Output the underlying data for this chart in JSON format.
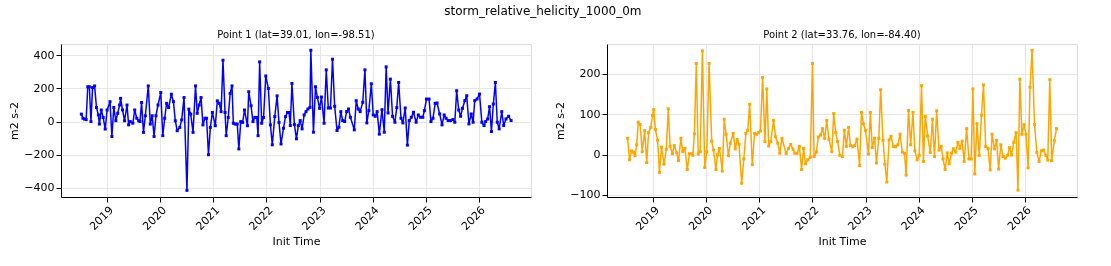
{
  "chart_data": [
    {
      "type": "line",
      "title": "storm_relative_helicity_1000_0m",
      "subtitle": "Point 1 (lat=39.01, lon=-98.51)",
      "xlabel": "Init Time",
      "ylabel": "m2 s-2",
      "xlim": [
        "2018-02-18",
        "2026-12-25"
      ],
      "xticks": [
        "2019",
        "2020",
        "2021",
        "2022",
        "2023",
        "2024",
        "2025",
        "2026"
      ],
      "ylim": [
        -455,
        468
      ],
      "yticks": [
        -400,
        -200,
        0,
        200,
        400
      ],
      "grid": true,
      "marker": "square",
      "x": [
        "2018-07-08",
        "2018-07-19",
        "2018-07-30",
        "2018-08-10",
        "2018-08-21",
        "2018-09-01",
        "2018-09-12",
        "2018-09-23",
        "2018-10-07",
        "2018-10-20",
        "2018-11-02",
        "2018-11-09",
        "2018-11-22",
        "2018-12-05",
        "2018-12-19",
        "2019-01-01",
        "2019-01-21",
        "2019-02-03",
        "2019-02-16",
        "2019-03-02",
        "2019-03-15",
        "2019-03-28",
        "2019-04-04",
        "2019-04-17",
        "2019-05-01",
        "2019-05-18",
        "2019-05-29",
        "2019-06-09",
        "2019-06-27",
        "2019-07-10",
        "2019-07-24",
        "2019-08-06",
        "2019-08-15",
        "2019-08-26",
        "2019-09-08",
        "2019-09-21",
        "2019-10-11",
        "2019-10-25",
        "2019-11-07",
        "2019-11-20",
        "2019-12-03",
        "2019-12-17",
        "2020-01-05",
        "2020-01-19",
        "2020-02-01",
        "2020-02-14",
        "2020-02-28",
        "2020-03-18",
        "2020-04-01",
        "2020-04-14",
        "2020-04-27",
        "2020-05-15",
        "2020-05-28",
        "2020-06-13",
        "2020-07-03",
        "2020-07-16",
        "2020-07-29",
        "2020-08-14",
        "2020-08-31",
        "2020-09-12",
        "2020-09-25",
        "2020-10-08",
        "2020-10-21",
        "2020-11-04",
        "2020-11-15",
        "2020-11-28",
        "2020-12-11",
        "2020-12-25",
        "2021-01-14",
        "2021-01-28",
        "2021-02-10",
        "2021-02-23",
        "2021-03-08",
        "2021-03-22",
        "2021-03-30",
        "2021-04-13",
        "2021-04-26",
        "2021-05-09",
        "2021-05-18",
        "2021-05-31",
        "2021-06-14",
        "2021-06-25",
        "2021-07-08",
        "2021-07-21",
        "2021-08-03",
        "2021-08-23",
        "2021-09-01",
        "2021-09-17",
        "2021-09-30",
        "2021-10-13",
        "2021-10-26",
        "2021-11-04",
        "2021-11-15",
        "2021-11-29",
        "2021-12-12",
        "2021-12-27",
        "2022-01-14",
        "2022-01-28",
        "2022-02-10",
        "2022-02-27",
        "2022-03-15",
        "2022-03-28",
        "2022-04-11",
        "2022-04-28",
        "2022-05-12",
        "2022-05-25",
        "2022-06-05",
        "2022-06-14",
        "2022-06-25",
        "2022-07-12",
        "2022-07-26",
        "2022-08-08",
        "2022-08-21",
        "2022-09-03",
        "2022-09-17",
        "2022-09-30",
        "2022-10-13",
        "2022-10-27",
        "2022-11-02",
        "2022-11-20",
        "2022-12-04",
        "2022-12-17",
        "2023-01-01",
        "2023-01-14",
        "2023-02-01",
        "2023-02-16",
        "2023-03-02",
        "2023-03-17",
        "2023-03-31",
        "2023-04-15",
        "2023-05-01",
        "2023-05-14",
        "2023-05-27",
        "2023-06-09",
        "2023-06-23",
        "2023-07-06",
        "2023-07-19",
        "2023-08-01",
        "2023-08-28",
        "2023-09-10",
        "2023-09-24",
        "2023-10-07",
        "2023-10-25",
        "2023-11-09",
        "2023-11-22",
        "2023-12-06",
        "2023-12-23",
        "2024-01-05",
        "2024-01-19",
        "2024-02-01",
        "2024-02-16",
        "2024-03-05",
        "2024-03-21",
        "2024-04-03",
        "2024-04-16",
        "2024-05-02",
        "2024-05-17",
        "2024-06-02",
        "2024-06-15",
        "2024-06-28",
        "2024-07-14",
        "2024-07-27",
        "2024-08-12",
        "2024-08-27",
        "2024-09-09",
        "2024-09-23",
        "2024-10-08",
        "2024-10-26",
        "2024-11-10",
        "2024-11-26",
        "2024-12-11",
        "2024-12-22",
        "2025-01-05",
        "2025-01-23",
        "2025-02-05",
        "2025-02-19",
        "2025-03-06",
        "2025-03-19",
        "2025-04-06",
        "2025-04-22",
        "2025-05-07",
        "2025-05-20",
        "2025-06-03",
        "2025-06-20",
        "2025-07-06",
        "2025-07-19",
        "2025-08-01",
        "2025-08-15",
        "2025-08-28",
        "2025-09-10",
        "2025-09-26",
        "2025-10-09",
        "2025-10-24",
        "2025-11-09",
        "2025-11-22",
        "2025-12-03",
        "2025-12-19",
        "2026-01-05",
        "2026-01-21",
        "2026-02-05",
        "2026-02-16",
        "2026-03-02",
        "2026-03-15",
        "2026-03-28",
        "2026-04-10",
        "2026-04-24",
        "2026-05-07",
        "2026-05-20",
        "2026-06-07",
        "2026-06-20",
        "2026-07-06",
        "2026-07-24",
        "2026-08-10"
      ],
      "series": [
        {
          "color": "#0000ff",
          "values": [
            45,
            20,
            15,
            12,
            210,
            210,
            0,
            205,
            215,
            85,
            40,
            -15,
            70,
            25,
            -45,
            70,
            120,
            -90,
            85,
            5,
            50,
            100,
            140,
            70,
            5,
            100,
            -20,
            0,
            -10,
            70,
            20,
            5,
            0,
            115,
            -65,
            35,
            215,
            -15,
            35,
            -90,
            35,
            100,
            175,
            -85,
            20,
            110,
            85,
            165,
            120,
            5,
            -55,
            -35,
            10,
            145,
            -415,
            75,
            45,
            -65,
            215,
            50,
            100,
            145,
            -20,
            20,
            20,
            -200,
            -35,
            55,
            -25,
            125,
            110,
            60,
            370,
            55,
            -85,
            25,
            170,
            215,
            -10,
            -15,
            -15,
            -165,
            0,
            -5,
            70,
            -25,
            180,
            95,
            0,
            25,
            25,
            -85,
            360,
            -10,
            25,
            275,
            200,
            -20,
            -140,
            30,
            155,
            -5,
            -135,
            -40,
            30,
            55,
            55,
            -24,
            230,
            -18,
            -104,
            -24,
            6,
            -44,
            40,
            60,
            76,
            86,
            430,
            -64,
            210,
            146,
            80,
            148,
            -10,
            312,
            82,
            82,
            376,
            92,
            -54,
            -34,
            60,
            6,
            0,
            60,
            76,
            26,
            -50,
            126,
            76,
            60,
            116,
            312,
            -8,
            66,
            228,
            40,
            32,
            60,
            -76,
            72,
            -64,
            330,
            52,
            256,
            32,
            -4,
            84,
            236,
            20,
            -8,
            82,
            -142,
            6,
            26,
            56,
            -4,
            40,
            26,
            26,
            66,
            136,
            136,
            0,
            20,
            110,
            112,
            46,
            -20,
            40,
            20,
            6,
            6,
            12,
            -4,
            186,
            70,
            32,
            80,
            126,
            156,
            -14,
            46,
            -4,
            126,
            136,
            166,
            -4,
            -24,
            0,
            16,
            90,
            -60,
            106,
            236,
            -4,
            -44,
            60,
            -24,
            16,
            32,
            6
          ]
        }
      ]
    },
    {
      "type": "line",
      "subtitle": "Point 2 (lat=33.76, lon=-84.40)",
      "xlabel": "Init Time",
      "ylabel": "m2 s-2",
      "xlim": [
        "2018-02-18",
        "2026-12-25"
      ],
      "xticks": [
        "2019",
        "2020",
        "2021",
        "2022",
        "2023",
        "2024",
        "2025",
        "2026"
      ],
      "ylim": [
        -105,
        273
      ],
      "yticks": [
        -100,
        0,
        100,
        200
      ],
      "grid": true,
      "marker": "square",
      "x": [
        "2018-07-10",
        "2018-07-23",
        "2018-08-06",
        "2018-08-19",
        "2018-08-30",
        "2018-09-10",
        "2018-09-21",
        "2018-10-04",
        "2018-10-18",
        "2018-11-04",
        "2018-11-18",
        "2018-12-01",
        "2018-12-16",
        "2018-12-28",
        "2019-01-05",
        "2019-01-17",
        "2019-02-01",
        "2019-02-14",
        "2019-02-28",
        "2019-03-17",
        "2019-04-02",
        "2019-04-15",
        "2019-04-28",
        "2019-05-14",
        "2019-05-27",
        "2019-06-12",
        "2019-06-25",
        "2019-07-11",
        "2019-07-24",
        "2019-08-08",
        "2019-08-24",
        "2019-09-08",
        "2019-09-22",
        "2019-10-01",
        "2019-10-12",
        "2019-10-25",
        "2019-11-07",
        "2019-11-21",
        "2019-12-06",
        "2019-12-22",
        "2020-01-05",
        "2020-01-21",
        "2020-02-08",
        "2020-02-21",
        "2020-03-08",
        "2020-03-19",
        "2020-04-01",
        "2020-04-21",
        "2020-05-04",
        "2020-05-17",
        "2020-06-02",
        "2020-06-15",
        "2020-07-05",
        "2020-07-19",
        "2020-08-01",
        "2020-08-14",
        "2020-09-01",
        "2020-09-16",
        "2020-09-30",
        "2020-10-13",
        "2020-10-26",
        "2020-11-13",
        "2020-11-29",
        "2020-12-12",
        "2020-12-25",
        "2021-01-08",
        "2021-01-23",
        "2021-02-08",
        "2021-02-21",
        "2021-03-06",
        "2021-03-20",
        "2021-04-08",
        "2021-04-22",
        "2021-05-07",
        "2021-05-21",
        "2021-06-05",
        "2021-07-04",
        "2021-07-20",
        "2021-08-04",
        "2021-08-20",
        "2021-09-02",
        "2021-09-17",
        "2021-10-03",
        "2021-10-18",
        "2021-11-01",
        "2021-11-14",
        "2021-11-30",
        "2021-12-17",
        "2022-01-01",
        "2022-01-12",
        "2022-01-28",
        "2022-02-10",
        "2022-02-25",
        "2022-03-11",
        "2022-03-26",
        "2022-04-09",
        "2022-04-24",
        "2022-05-14",
        "2022-05-27",
        "2022-06-10",
        "2022-06-23",
        "2022-07-08",
        "2022-07-26",
        "2022-08-08",
        "2022-08-22",
        "2022-09-06",
        "2022-09-19",
        "2022-10-05",
        "2022-10-18",
        "2022-11-03",
        "2022-11-21",
        "2022-12-04",
        "2022-12-17",
        "2023-01-01",
        "2023-01-21",
        "2023-02-03",
        "2023-02-16",
        "2023-03-04",
        "2023-03-17",
        "2023-04-02",
        "2023-04-15",
        "2023-05-01",
        "2023-05-14",
        "2023-05-27",
        "2023-06-12",
        "2023-06-25",
        "2023-07-11",
        "2023-07-26",
        "2023-08-11",
        "2023-08-26",
        "2023-09-11",
        "2023-09-26",
        "2023-10-07",
        "2023-10-23",
        "2023-11-07",
        "2023-11-23",
        "2023-12-06",
        "2023-12-22",
        "2024-01-05",
        "2024-01-21",
        "2024-02-03",
        "2024-02-16",
        "2024-03-03",
        "2024-03-21",
        "2024-04-05",
        "2024-04-19",
        "2024-05-04",
        "2024-05-20",
        "2024-06-04",
        "2024-06-17",
        "2024-07-01",
        "2024-07-16",
        "2024-07-29",
        "2024-08-14",
        "2024-08-27",
        "2024-09-12",
        "2024-09-27",
        "2024-10-11",
        "2024-10-26",
        "2024-11-09",
        "2024-11-26",
        "2024-12-12",
        "2024-12-27",
        "2025-01-08",
        "2025-01-21",
        "2025-02-05",
        "2025-02-21",
        "2025-03-08",
        "2025-03-22",
        "2025-04-06",
        "2025-04-22",
        "2025-05-07",
        "2025-05-20",
        "2025-06-05",
        "2025-06-20",
        "2025-07-04",
        "2025-07-19",
        "2025-08-04",
        "2025-08-19",
        "2025-09-04",
        "2025-09-17",
        "2025-10-01",
        "2025-10-16",
        "2025-11-01",
        "2025-11-14",
        "2025-11-27",
        "2025-12-11",
        "2025-12-26",
        "2026-01-08",
        "2026-01-23",
        "2026-02-05",
        "2026-02-19",
        "2026-03-08",
        "2026-03-24",
        "2026-04-08",
        "2026-04-24",
        "2026-05-09",
        "2026-05-25",
        "2026-06-07",
        "2026-06-21",
        "2026-07-04",
        "2026-07-22",
        "2026-08-06"
      ],
      "series": [
        {
          "color": "#ffa500",
          "values": [
            40,
            -13,
            9,
            6,
            -3,
            24,
            80,
            74,
            7,
            59,
            -20,
            54,
            67,
            97,
            111,
            62,
            35,
            -44,
            18,
            -24,
            13,
            113,
            20,
            2,
            22,
            4,
            -15,
            40,
            7,
            15,
            -37,
            2,
            2,
            -2,
            51,
            225,
            1,
            7,
            256,
            -32,
            7,
            225,
            33,
            11,
            -37,
            -1,
            15,
            -41,
            87,
            50,
            -3,
            28,
            52,
            14,
            37,
            25,
            -71,
            -11,
            52,
            60,
            124,
            -25,
            52,
            50,
            54,
            58,
            190,
            32,
            162,
            21,
            32,
            84,
            44,
            28,
            3,
            40,
            2,
            15,
            25,
            13,
            3,
            3,
            20,
            -37,
            15,
            -23,
            -13,
            -7,
            225,
            -5,
            6,
            43,
            48,
            64,
            40,
            84,
            38,
            7,
            101,
            54,
            32,
            -2,
            -5,
            60,
            20,
            67,
            22,
            19,
            22,
            38,
            -27,
            104,
            76,
            59,
            1,
            104,
            17,
            40,
            -21,
            40,
            160,
            35,
            -24,
            -68,
            36,
            45,
            20,
            19,
            24,
            50,
            6,
            3,
            -51,
            109,
            24,
            104,
            9,
            -13,
            -2,
            170,
            -17,
            94,
            46,
            5,
            87,
            -5,
            108,
            11,
            20,
            -11,
            -37,
            4,
            -23,
            3,
            14,
            6,
            30,
            15,
            33,
            -17,
            64,
            -11,
            -11,
            162,
            -48,
            76,
            -2,
            97,
            172,
            20,
            15,
            -38,
            50,
            14,
            35,
            -36,
            24,
            -5,
            -9,
            -2,
            17,
            -1,
            30,
            54,
            -88,
            186,
            50,
            74,
            50,
            -33,
            166,
            257,
            74,
            5,
            -17,
            9,
            11,
            -2,
            -14,
            185,
            -15,
            34,
            64
          ]
        }
      ]
    }
  ]
}
